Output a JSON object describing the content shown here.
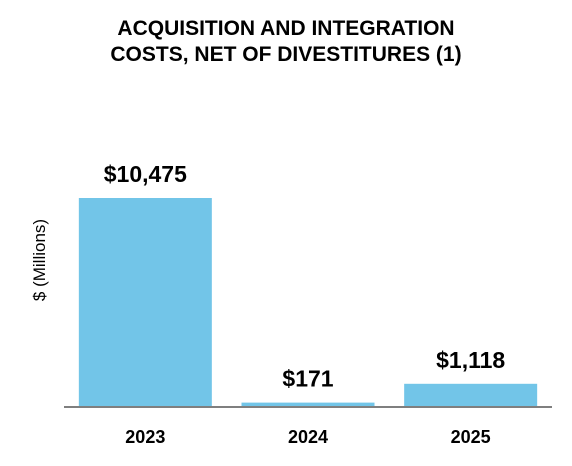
{
  "chart_data": {
    "type": "bar",
    "title_lines": [
      "ACQUISITION AND INTEGRATION",
      "COSTS, NET OF DIVESTITURES (1)"
    ],
    "ylabel": "$ (Millions)",
    "categories": [
      "2023",
      "2024",
      "2025"
    ],
    "values": [
      10475,
      171,
      1118
    ],
    "value_labels": [
      "$10,475",
      "$171",
      "$1,118"
    ],
    "ylim": [
      0,
      11500
    ],
    "grid": false,
    "legend": "none",
    "bar_color": "#72C5E8",
    "axis_color": "#7f7f7f"
  }
}
